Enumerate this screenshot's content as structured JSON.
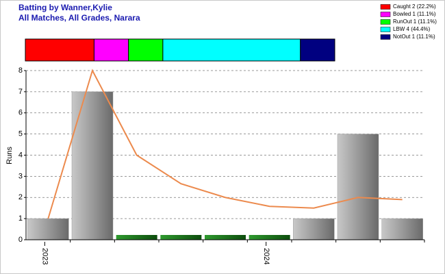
{
  "chart_data": {
    "type": "bar",
    "title": "Batting by Wanner,Kylie",
    "subtitle": "All Matches, All Grades, Narara",
    "y_label": "Runs",
    "categories": [
      "2023",
      null,
      null,
      null,
      null,
      "2024",
      null,
      null,
      null
    ],
    "values": [
      1,
      7,
      0,
      0,
      0,
      0,
      1,
      5,
      1
    ],
    "color": "#9a9a9a",
    "zero_color": "#1f7a1f",
    "line": {
      "values": [
        1,
        8,
        4,
        2.65,
        2,
        1.58,
        1.5,
        2,
        1.9
      ],
      "color": "#ec8a4d"
    },
    "ylim": [
      0,
      8
    ],
    "yticks": [
      0,
      1,
      2,
      3,
      4,
      5,
      6,
      7,
      8
    ],
    "grid": true,
    "dismissals": {
      "labels": [
        "Caught 2 (22.2%)",
        "Bowled 1 (11.1%)",
        "RunOut 1 (11.1%)",
        "LBW 4 (44.4%)",
        "NotOut 1 (11.1%)"
      ],
      "values": [
        2,
        1,
        1,
        4,
        1
      ],
      "colors": [
        "#ff0000",
        "#ff00ff",
        "#00ff00",
        "#00ffff",
        "#000080"
      ]
    }
  }
}
